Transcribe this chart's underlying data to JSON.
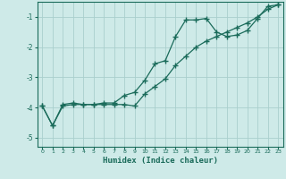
{
  "xlabel": "Humidex (Indice chaleur)",
  "bg_color": "#ceeae8",
  "grid_color": "#aacfcd",
  "line_color": "#1a6b5a",
  "xlim": [
    -0.5,
    23.5
  ],
  "ylim": [
    -5.3,
    -0.5
  ],
  "yticks": [
    -5,
    -4,
    -3,
    -2,
    -1
  ],
  "xticks": [
    0,
    1,
    2,
    3,
    4,
    5,
    6,
    7,
    8,
    9,
    10,
    11,
    12,
    13,
    14,
    15,
    16,
    17,
    18,
    19,
    20,
    21,
    22,
    23
  ],
  "line1_x": [
    0,
    1,
    2,
    3,
    4,
    5,
    6,
    7,
    8,
    9,
    10,
    11,
    12,
    13,
    14,
    15,
    16,
    17,
    18,
    19,
    20,
    21,
    22,
    23
  ],
  "line1_y": [
    -3.95,
    -4.6,
    -3.9,
    -3.85,
    -3.9,
    -3.9,
    -3.85,
    -3.85,
    -3.6,
    -3.5,
    -3.1,
    -2.55,
    -2.45,
    -1.65,
    -1.1,
    -1.1,
    -1.05,
    -1.5,
    -1.65,
    -1.6,
    -1.45,
    -1.05,
    -0.65,
    -0.6
  ],
  "line2_x": [
    0,
    1,
    2,
    3,
    4,
    5,
    6,
    7,
    8,
    9,
    10,
    11,
    12,
    13,
    14,
    15,
    16,
    17,
    18,
    19,
    20,
    21,
    22,
    23
  ],
  "line2_y": [
    -3.95,
    -4.6,
    -3.95,
    -3.9,
    -3.9,
    -3.9,
    -3.9,
    -3.9,
    -3.9,
    -3.95,
    -3.55,
    -3.3,
    -3.05,
    -2.6,
    -2.3,
    -2.0,
    -1.8,
    -1.65,
    -1.5,
    -1.35,
    -1.2,
    -1.0,
    -0.75,
    -0.6
  ]
}
